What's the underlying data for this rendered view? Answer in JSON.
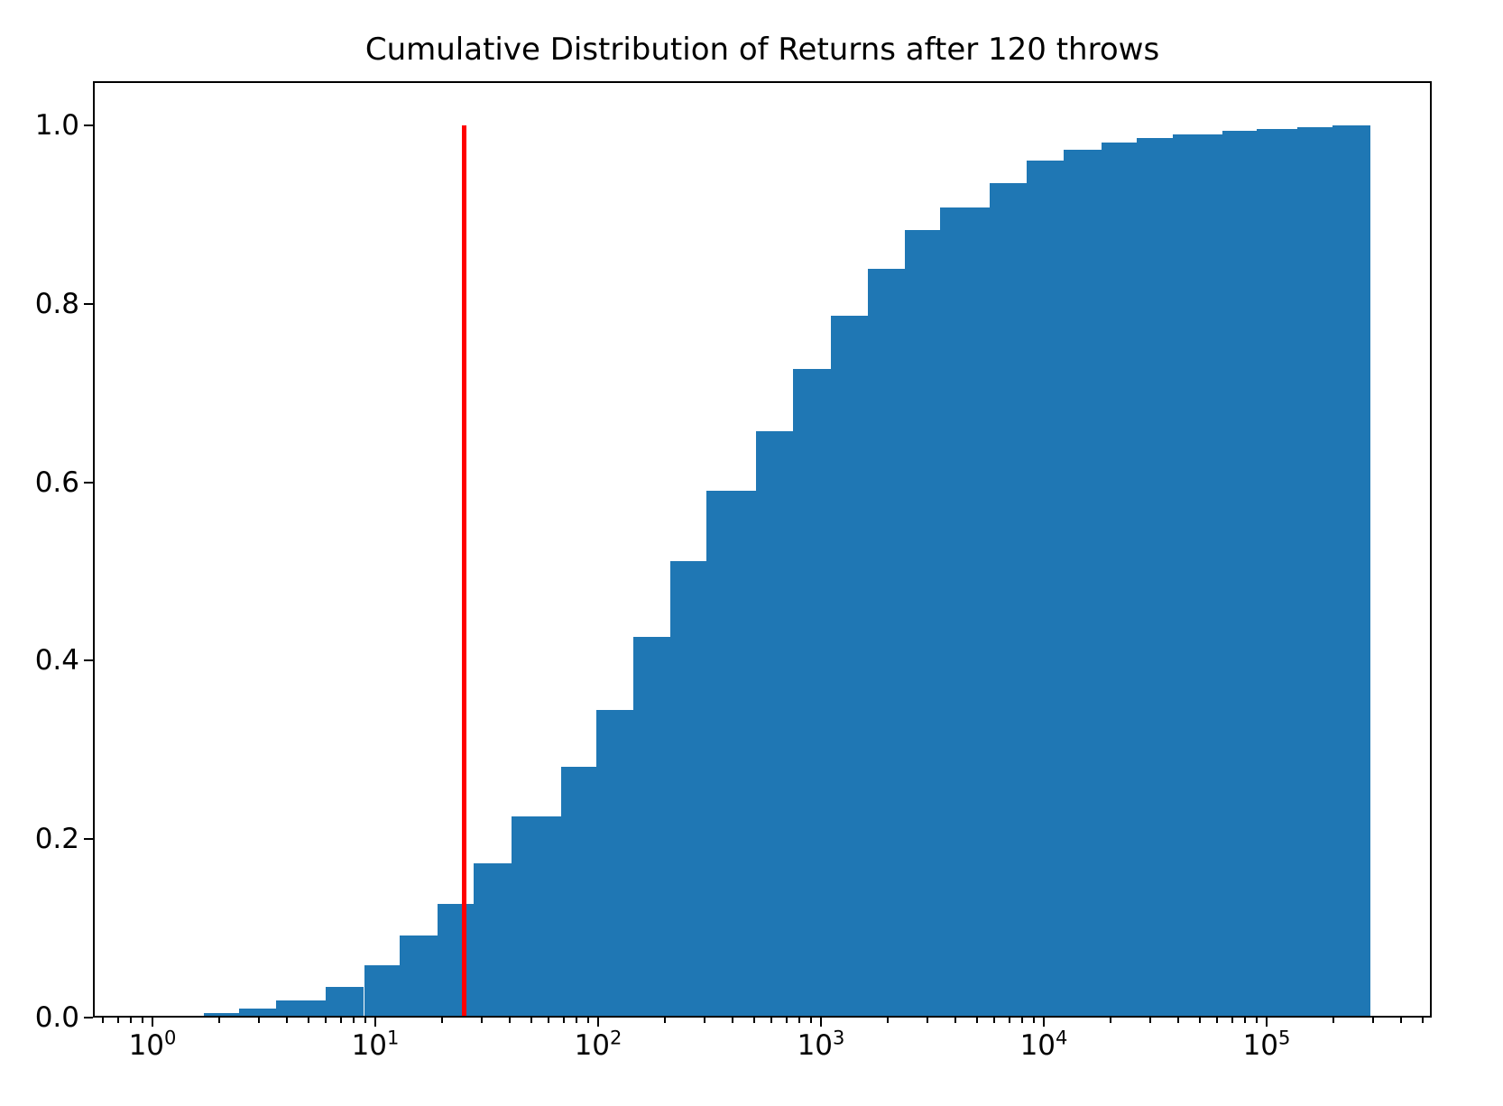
{
  "figure": {
    "background": "#ffffff",
    "text_color": "#000000"
  },
  "chart_data": {
    "type": "bar",
    "subtype": "cumulative_histogram",
    "title": "Cumulative Distribution of Returns after 120 throws",
    "xlabel": "",
    "ylabel": "",
    "x_scale": "log",
    "xlim": [
      0.54,
      550000
    ],
    "ylim": [
      0,
      1.05
    ],
    "grid": false,
    "legend": "none",
    "bar_color": "#1f77b4",
    "spine_color": "#000000",
    "vline": {
      "x": 25,
      "color": "#ff0000",
      "y_from": 0,
      "y_to": 1.0
    },
    "y_ticks": {
      "values": [
        0.0,
        0.2,
        0.4,
        0.6,
        0.8,
        1.0
      ],
      "labels": [
        "0.0",
        "0.2",
        "0.4",
        "0.6",
        "0.8",
        "1.0"
      ]
    },
    "x_major_ticks": {
      "base": "10",
      "exponents": [
        0,
        1,
        2,
        3,
        4,
        5
      ]
    },
    "x_minor_tick_multiples": [
      2,
      3,
      4,
      5,
      6,
      7,
      8,
      9
    ],
    "bin_edges": [
      1.7,
      2.45,
      3.6,
      6.0,
      8.9,
      12.9,
      19.0,
      27.6,
      41,
      68,
      98,
      144,
      211,
      306,
      511,
      749,
      1110,
      1620,
      2380,
      3420,
      5720,
      8370,
      12300,
      18200,
      26100,
      37900,
      63300,
      90300,
      137000,
      197000,
      292000
    ],
    "cumulative": [
      0.005,
      0.01,
      0.019,
      0.034,
      0.059,
      0.092,
      0.127,
      0.173,
      0.226,
      0.281,
      0.345,
      0.427,
      0.512,
      0.591,
      0.657,
      0.727,
      0.787,
      0.839,
      0.883,
      0.908,
      0.935,
      0.961,
      0.973,
      0.981,
      0.986,
      0.99,
      0.994,
      0.996,
      0.998,
      1.0
    ]
  }
}
